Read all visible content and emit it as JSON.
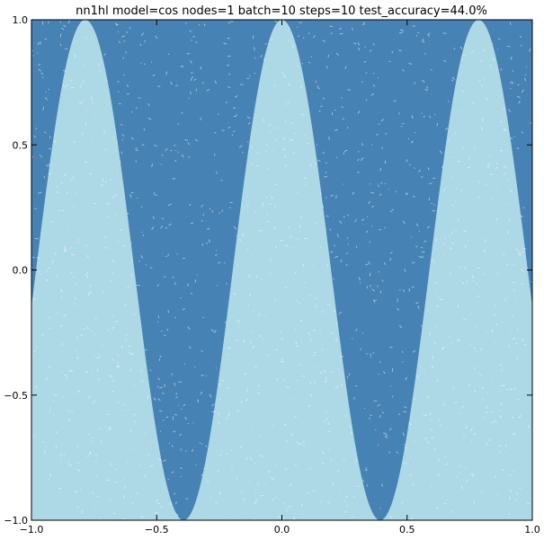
{
  "chart_data": {
    "type": "heatmap",
    "title": "nn1hl model=cos nodes=1 batch=10 steps=10 test_accuracy=44.0%",
    "xlabel": "",
    "ylabel": "",
    "xlim": [
      -1.0,
      1.0
    ],
    "ylim": [
      -1.0,
      1.0
    ],
    "grid": false,
    "legend": "none",
    "x_ticks": [
      "−1.0",
      "−0.5",
      "0.0",
      "0.5",
      "1.0"
    ],
    "x_tick_values": [
      -1.0,
      -0.5,
      0.0,
      0.5,
      1.0
    ],
    "y_ticks": [
      "−1.0",
      "−0.5",
      "0.0",
      "0.5",
      "1.0"
    ],
    "y_tick_values": [
      -1.0,
      -0.5,
      0.0,
      0.5,
      1.0
    ],
    "decision_boundary": {
      "function": "y = cos(8x)",
      "period": 0.785,
      "peaks_at_x": [
        -0.785,
        0.0,
        0.785
      ],
      "troughs_at_x": [
        -0.393,
        0.393
      ]
    },
    "regions": [
      {
        "class": "below boundary",
        "color": "#add8e6"
      },
      {
        "class": "above boundary",
        "color": "#4682b4"
      }
    ]
  }
}
